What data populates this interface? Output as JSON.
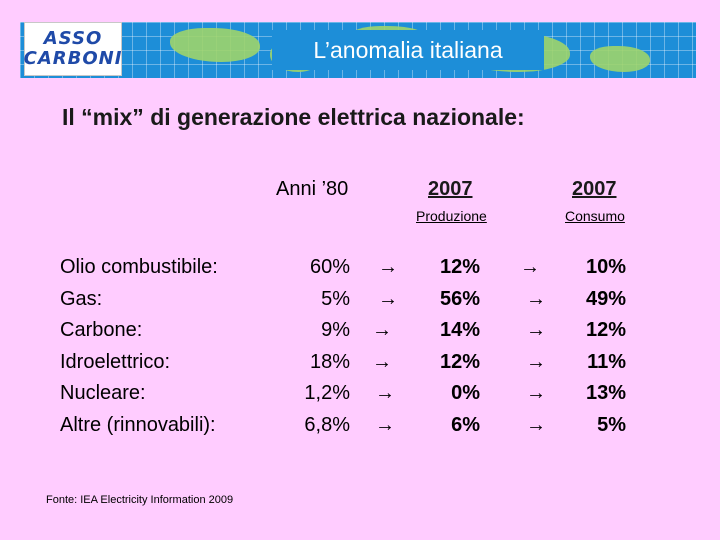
{
  "header": {
    "logo_line1": "ASSO",
    "logo_line2": "CARBONI",
    "title": "L’anomalia italiana"
  },
  "subtitle": "Il “mix” di generazione elettrica nazionale:",
  "columns": {
    "anni80": "Anni ’80",
    "prod_year": "2007 ",
    "prod_label": "Produzione",
    "cons_year": "2007",
    "cons_label": "Consumo"
  },
  "arrow_glyph": "→",
  "rows": [
    {
      "label": "Olio combustibile:",
      "anni80": "60%",
      "prod": "12%",
      "cons": "10%"
    },
    {
      "label": "Gas:",
      "anni80": "5%",
      "prod": "56%",
      "cons": "49%"
    },
    {
      "label": "Carbone:",
      "anni80": "9%",
      "prod": "14%",
      "cons": "12%"
    },
    {
      "label": "Idroelettrico:",
      "anni80": "18%",
      "prod": "12%",
      "cons": "11%"
    },
    {
      "label": "Nucleare:",
      "anni80": "1,2%",
      "prod": "0%",
      "cons": "13%"
    },
    {
      "label": "Altre (rinnovabili):",
      "anni80": "6,8%",
      "prod": "6%",
      "cons": "5%"
    }
  ],
  "source": "Fonte: IEA Electricity Information 2009",
  "colors": {
    "background": "#ffccff",
    "banner": "#1d8ed8",
    "land": "#9fd46b",
    "logo_text": "#1f4aa8"
  }
}
